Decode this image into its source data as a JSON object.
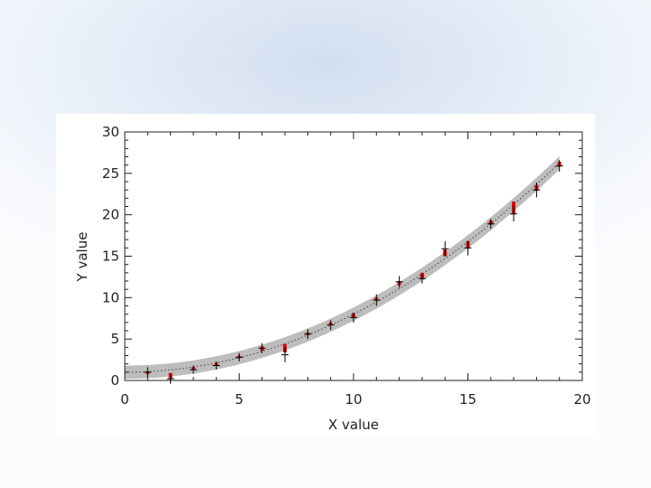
{
  "chart_data": {
    "type": "scatter",
    "title": "",
    "xlabel": "X value",
    "ylabel": "Y value",
    "xlim": [
      0,
      20
    ],
    "ylim": [
      0,
      30
    ],
    "xticks": [
      "0",
      "5",
      "10",
      "15",
      "20"
    ],
    "yticks": [
      "0",
      "5",
      "10",
      "15",
      "20",
      "25",
      "30"
    ],
    "grid": false,
    "colors": {
      "measured": "#000000",
      "model": "#e00000",
      "band": "#bdbdbd",
      "fit": "#555555"
    },
    "series": [
      {
        "kind": "points-with-errorbars",
        "x": [
          1,
          2,
          3,
          4,
          5,
          6,
          7,
          8,
          9,
          10,
          11,
          12,
          13,
          14,
          15,
          16,
          17,
          18,
          19
        ],
        "y": [
          1.0,
          0.2,
          1.3,
          1.8,
          2.8,
          3.9,
          3.1,
          5.6,
          6.7,
          7.6,
          9.7,
          11.9,
          12.3,
          15.9,
          16.0,
          18.9,
          20.1,
          23.0,
          25.9
        ],
        "yerr": [
          0.6,
          0.6,
          0.5,
          0.5,
          0.5,
          0.6,
          0.9,
          0.6,
          0.6,
          0.6,
          0.7,
          0.7,
          0.6,
          0.9,
          0.9,
          0.6,
          0.9,
          0.9,
          0.7
        ]
      },
      {
        "kind": "red-markers",
        "x": [
          1,
          2,
          3,
          4,
          5,
          6,
          7,
          8,
          9,
          10,
          11,
          12,
          13,
          14,
          15,
          16,
          17,
          18,
          19
        ],
        "y_low": [
          0.9,
          0.2,
          1.3,
          1.9,
          2.8,
          3.6,
          3.4,
          5.5,
          6.7,
          7.6,
          9.7,
          11.5,
          12.3,
          15.0,
          16.0,
          18.8,
          20.1,
          22.9,
          25.8
        ],
        "y_high": [
          1.1,
          0.9,
          1.6,
          2.1,
          3.0,
          4.1,
          4.4,
          5.8,
          7.0,
          8.1,
          10.0,
          12.0,
          13.0,
          15.8,
          16.8,
          19.3,
          21.6,
          23.6,
          26.4
        ]
      },
      {
        "kind": "fit-band",
        "coefficients": [
          1.0,
          0.0,
          0.07
        ],
        "band_halfwidth": 0.8,
        "x_range": [
          0,
          19
        ]
      }
    ]
  }
}
